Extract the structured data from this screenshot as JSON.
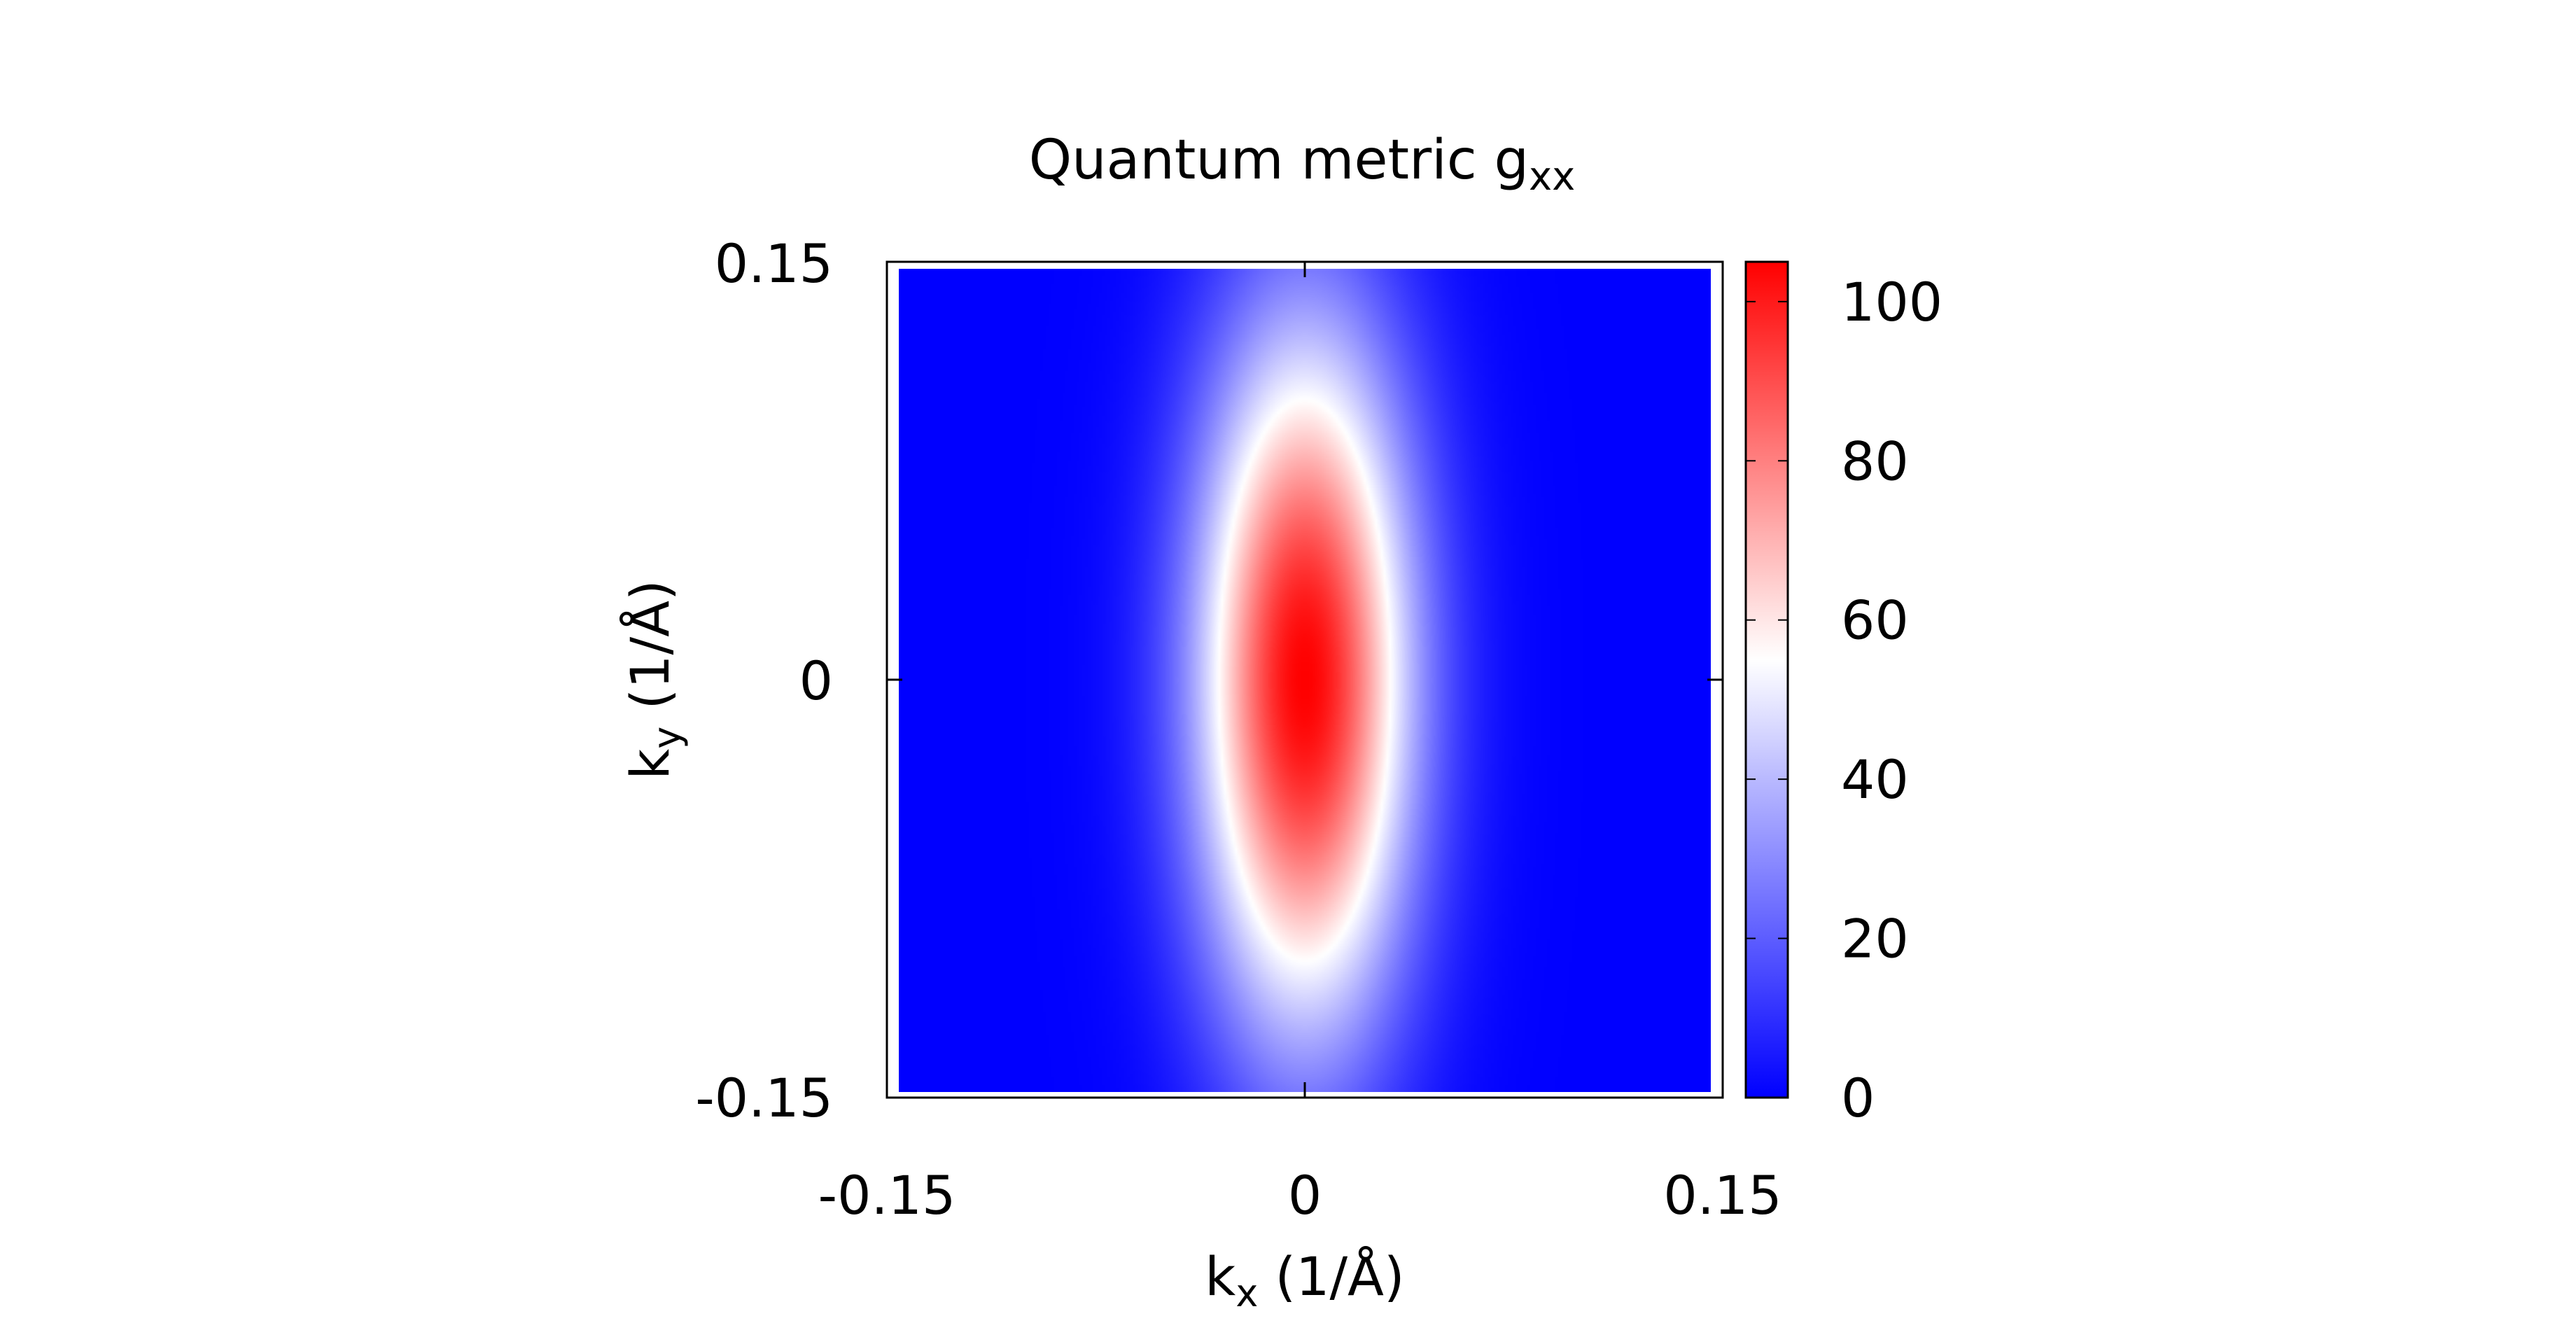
{
  "chart_data": {
    "type": "heatmap",
    "title": {
      "main": "Quantum metric g",
      "sub": "xx"
    },
    "xlabel": {
      "main": "k",
      "sub": "x",
      "rest": " (1/Å)"
    },
    "ylabel": {
      "main": "k",
      "sub": "y",
      "rest": " (1/Å)"
    },
    "xlim": [
      -0.15,
      0.15
    ],
    "ylim": [
      -0.15,
      0.15
    ],
    "xticks": [
      "-0.15",
      "0",
      "0.15"
    ],
    "yticks": [
      "-0.15",
      "0",
      "0.15"
    ],
    "colorbar": {
      "range": [
        0,
        105
      ],
      "ticks": [
        "0",
        "20",
        "40",
        "60",
        "80",
        "100"
      ],
      "tick_values": [
        0,
        20,
        40,
        60,
        80,
        100
      ],
      "colors": {
        "low": "#0000ff",
        "mid": "#ffffff",
        "high": "#ff0000"
      },
      "mid_value": 55
    },
    "field": {
      "peak_value": 105,
      "peak_location": [
        0,
        0
      ],
      "sigma_kx": 0.028,
      "sigma_ky": 0.09
    }
  }
}
